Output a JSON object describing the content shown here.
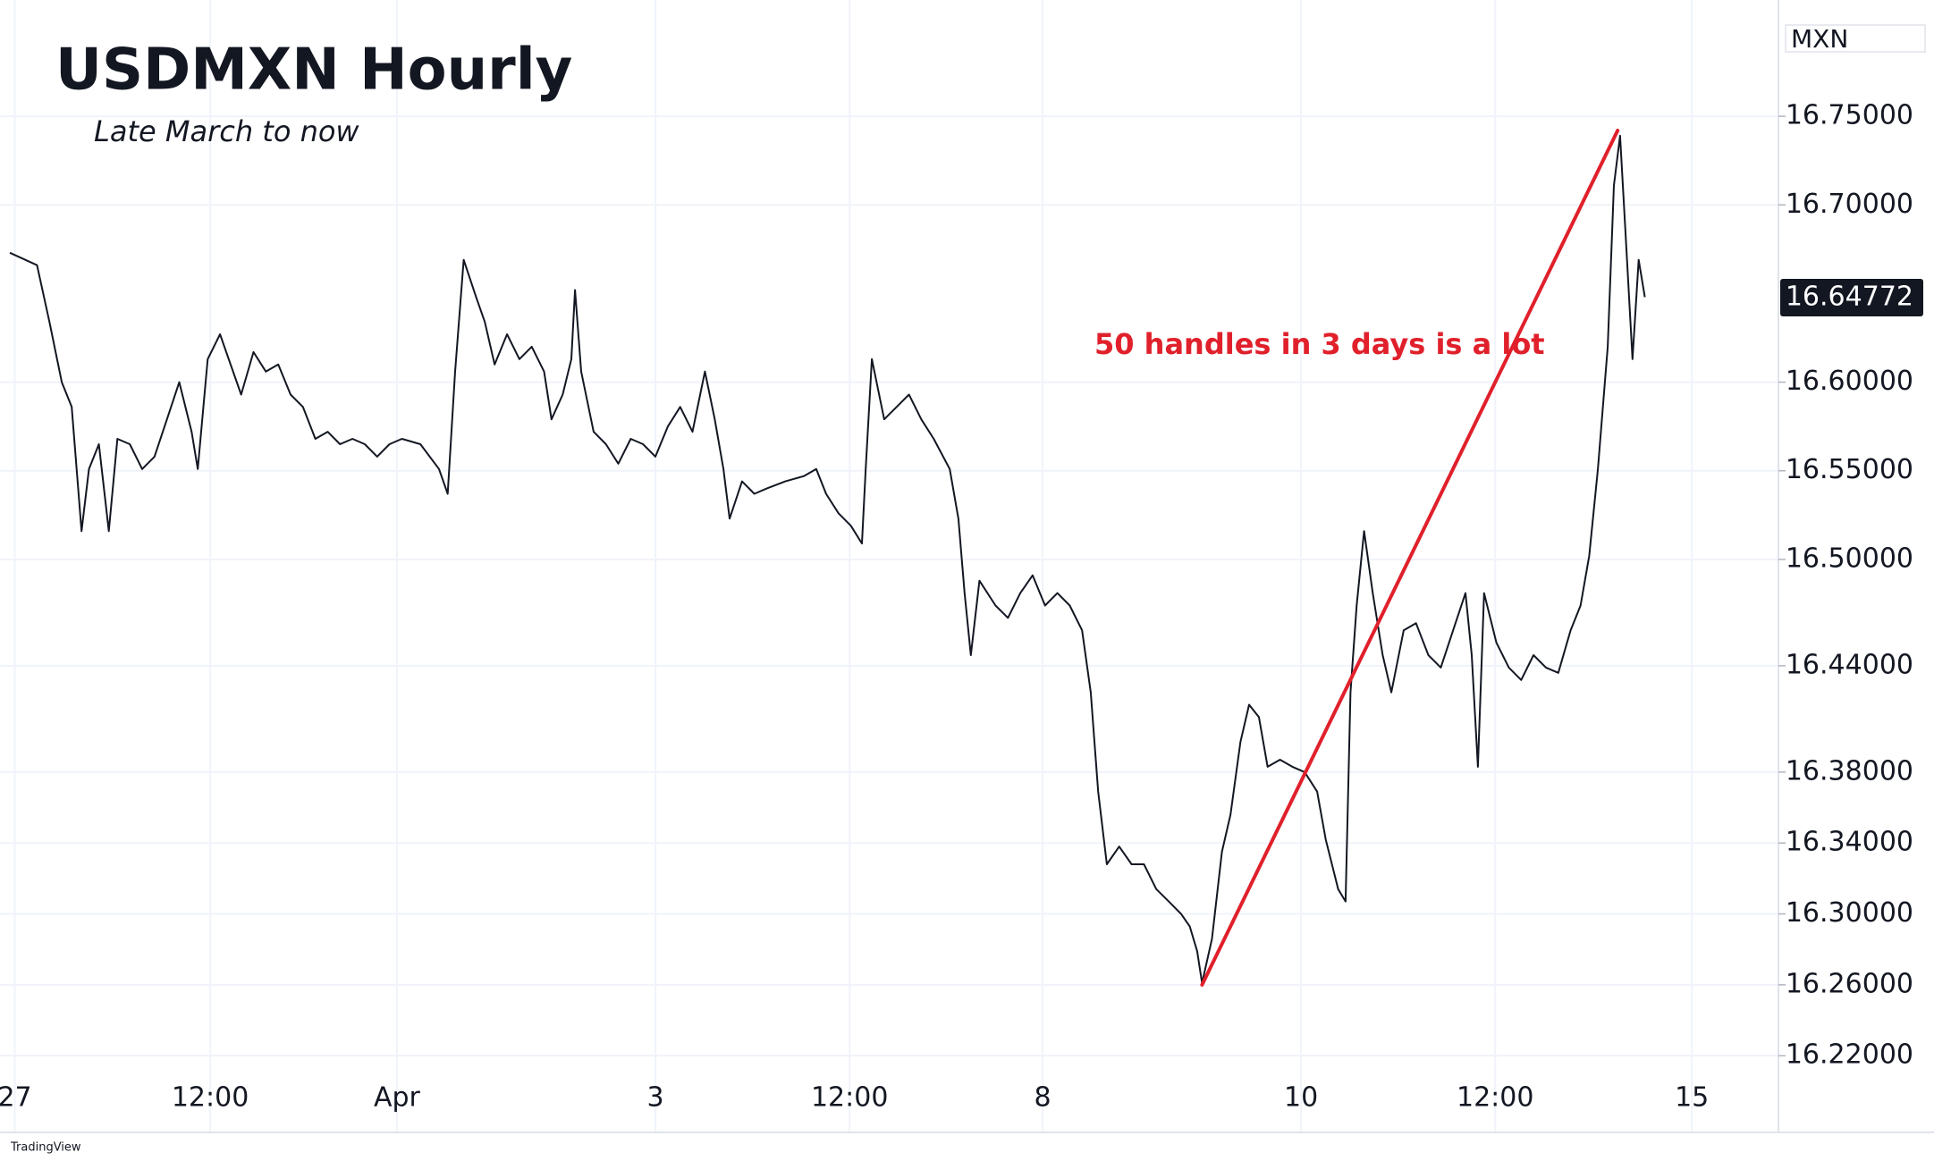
{
  "chart_data": {
    "type": "line",
    "title": "USDMXN Hourly",
    "subtitle": "Late March to now",
    "unit": "MXN",
    "annotation": "50 handles in 3 days is a lot",
    "watermark": "TradingView",
    "color": "#131722",
    "grid": true,
    "x": [
      0,
      22,
      32,
      42,
      50,
      58,
      64,
      72,
      80,
      87,
      97,
      107,
      117,
      127,
      137,
      147,
      152,
      160,
      170,
      177,
      187,
      197,
      207,
      217,
      227,
      237,
      247,
      257,
      267,
      277,
      287,
      297,
      307,
      317,
      332,
      347,
      354,
      360,
      367,
      377,
      384,
      392,
      402,
      412,
      422,
      432,
      438,
      447,
      454,
      457,
      462,
      472,
      482,
      492,
      502,
      512,
      522,
      532,
      542,
      552,
      562,
      570,
      577,
      582,
      592,
      602,
      612,
      627,
      642,
      652,
      660,
      670,
      680,
      689,
      692,
      697,
      707,
      717,
      727,
      737,
      747,
      760,
      767,
      772,
      777,
      784,
      797,
      807,
      817,
      827,
      837,
      847,
      857,
      867,
      874,
      880,
      887,
      897,
      907,
      917,
      927,
      937,
      947,
      954,
      960,
      964,
      972,
      980,
      987,
      995,
      1002,
      1010,
      1017,
      1027,
      1037,
      1047,
      1057,
      1064,
      1074,
      1080,
      1084,
      1089,
      1095,
      1102,
      1110,
      1117,
      1127,
      1137,
      1147,
      1157,
      1167,
      1177,
      1182,
      1187,
      1192,
      1202,
      1212,
      1222,
      1232,
      1242,
      1252,
      1262,
      1270,
      1277,
      1284,
      1292,
      1297,
      1302,
      1307,
      1312,
      1317,
      1322
    ],
    "values": [
      16.673,
      16.666,
      16.634,
      16.6,
      16.586,
      16.516,
      16.551,
      16.565,
      16.516,
      16.568,
      16.565,
      16.551,
      16.558,
      16.579,
      16.6,
      16.572,
      16.551,
      16.613,
      16.627,
      16.613,
      16.593,
      16.617,
      16.606,
      16.61,
      16.593,
      16.586,
      16.568,
      16.572,
      16.565,
      16.568,
      16.565,
      16.558,
      16.565,
      16.568,
      16.565,
      16.551,
      16.537,
      16.606,
      16.669,
      16.648,
      16.634,
      16.61,
      16.627,
      16.613,
      16.62,
      16.606,
      16.579,
      16.593,
      16.613,
      16.652,
      16.606,
      16.572,
      16.565,
      16.554,
      16.568,
      16.565,
      16.558,
      16.575,
      16.586,
      16.572,
      16.606,
      16.579,
      16.551,
      16.523,
      16.544,
      16.537,
      16.54,
      16.544,
      16.547,
      16.551,
      16.537,
      16.526,
      16.519,
      16.509,
      16.551,
      16.613,
      16.579,
      16.586,
      16.593,
      16.579,
      16.568,
      16.551,
      16.523,
      16.481,
      16.446,
      16.488,
      16.474,
      16.467,
      16.481,
      16.491,
      16.474,
      16.481,
      16.474,
      16.46,
      16.425,
      16.369,
      16.328,
      16.338,
      16.328,
      16.328,
      16.314,
      16.307,
      16.3,
      16.293,
      16.279,
      16.261,
      16.286,
      16.335,
      16.356,
      16.397,
      16.418,
      16.411,
      16.383,
      16.387,
      16.383,
      16.38,
      16.369,
      16.342,
      16.314,
      16.307,
      16.425,
      16.474,
      16.516,
      16.481,
      16.446,
      16.425,
      16.46,
      16.464,
      16.446,
      16.439,
      16.46,
      16.481,
      16.446,
      16.383,
      16.481,
      16.453,
      16.439,
      16.432,
      16.446,
      16.439,
      16.436,
      16.46,
      16.474,
      16.502,
      16.551,
      16.62,
      16.711,
      16.739,
      16.676,
      16.613,
      16.669,
      16.648
    ],
    "last_value": 16.64772,
    "trendline": {
      "color": "#e0202b",
      "x": [
        964,
        1300
      ],
      "values": [
        16.26,
        16.742
      ]
    },
    "xlim": [
      0,
      1430
    ],
    "xticks": [
      {
        "value": 4,
        "label": "27"
      },
      {
        "value": 162,
        "label": "12:00"
      },
      {
        "value": 313,
        "label": "Apr"
      },
      {
        "value": 522,
        "label": "3"
      },
      {
        "value": 679,
        "label": "12:00"
      },
      {
        "value": 835,
        "label": "8"
      },
      {
        "value": 1044,
        "label": "10"
      },
      {
        "value": 1201,
        "label": "12:00"
      },
      {
        "value": 1360,
        "label": "15"
      }
    ],
    "ylim": [
      16.209,
      16.803
    ],
    "yticks": [
      {
        "value": 16.75,
        "label": "16.75000"
      },
      {
        "value": 16.7,
        "label": "16.70000"
      },
      {
        "value": 16.6,
        "label": "16.60000"
      },
      {
        "value": 16.55,
        "label": "16.55000"
      },
      {
        "value": 16.5,
        "label": "16.50000"
      },
      {
        "value": 16.44,
        "label": "16.44000"
      },
      {
        "value": 16.38,
        "label": "16.38000"
      },
      {
        "value": 16.34,
        "label": "16.34000"
      },
      {
        "value": 16.3,
        "label": "16.30000"
      },
      {
        "value": 16.26,
        "label": "16.26000"
      },
      {
        "value": 16.22,
        "label": "16.22000"
      }
    ]
  }
}
